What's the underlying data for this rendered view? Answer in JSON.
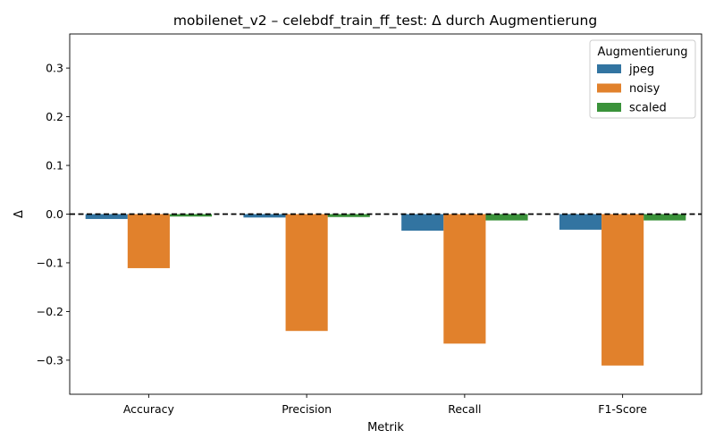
{
  "chart_data": {
    "type": "bar",
    "title": "mobilenet_v2 – celebdf_train_ff_test: Δ durch Augmentierung",
    "xlabel": "Metrik",
    "ylabel": "Δ",
    "categories": [
      "Accuracy",
      "Precision",
      "Recall",
      "F1-Score"
    ],
    "series": [
      {
        "name": "jpeg",
        "color": "#3274a1",
        "values": [
          -0.01,
          -0.007,
          -0.034,
          -0.032
        ]
      },
      {
        "name": "noisy",
        "color": "#e1812c",
        "values": [
          -0.111,
          -0.24,
          -0.266,
          -0.311
        ]
      },
      {
        "name": "scaled",
        "color": "#3a923a",
        "values": [
          -0.005,
          -0.006,
          -0.013,
          -0.013
        ]
      }
    ],
    "ylim": [
      -0.37,
      0.37
    ],
    "yticks": [
      0.3,
      0.2,
      0.1,
      0.0,
      -0.1,
      -0.2,
      -0.3
    ],
    "ytick_labels": [
      "0.3",
      "0.2",
      "0.1",
      "0.0",
      "−0.1",
      "−0.2",
      "−0.3"
    ],
    "reference_line": {
      "y": 0,
      "style": "dashed",
      "color": "#000000"
    },
    "legend": {
      "title": "Augmentierung",
      "placement": "top-right"
    },
    "grid": false
  }
}
